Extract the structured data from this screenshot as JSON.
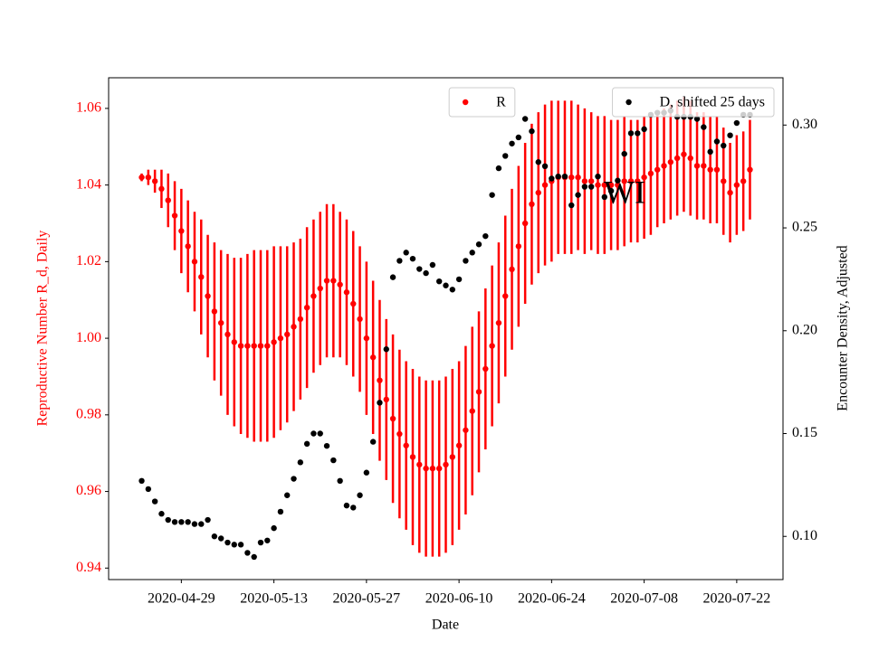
{
  "chart_data": {
    "type": "errorbar_dual",
    "annotation": "WI",
    "xlabel": "Date",
    "ylabel": "Reproductive Number R_d, Daily",
    "y2label": "Encounter Density, Adjusted",
    "x": [
      "2020-04-23",
      "2020-04-24",
      "2020-04-25",
      "2020-04-26",
      "2020-04-27",
      "2020-04-28",
      "2020-04-29",
      "2020-04-30",
      "2020-05-01",
      "2020-05-02",
      "2020-05-03",
      "2020-05-04",
      "2020-05-05",
      "2020-05-06",
      "2020-05-07",
      "2020-05-08",
      "2020-05-09",
      "2020-05-10",
      "2020-05-11",
      "2020-05-12",
      "2020-05-13",
      "2020-05-14",
      "2020-05-15",
      "2020-05-16",
      "2020-05-17",
      "2020-05-18",
      "2020-05-19",
      "2020-05-20",
      "2020-05-21",
      "2020-05-22",
      "2020-05-23",
      "2020-05-24",
      "2020-05-25",
      "2020-05-26",
      "2020-05-27",
      "2020-05-28",
      "2020-05-29",
      "2020-05-30",
      "2020-05-31",
      "2020-06-01",
      "2020-06-02",
      "2020-06-03",
      "2020-06-04",
      "2020-06-05",
      "2020-06-06",
      "2020-06-07",
      "2020-06-08",
      "2020-06-09",
      "2020-06-10",
      "2020-06-11",
      "2020-06-12",
      "2020-06-13",
      "2020-06-14",
      "2020-06-15",
      "2020-06-16",
      "2020-06-17",
      "2020-06-18",
      "2020-06-19",
      "2020-06-20",
      "2020-06-21",
      "2020-06-22",
      "2020-06-23",
      "2020-06-24",
      "2020-06-25",
      "2020-06-26",
      "2020-06-27",
      "2020-06-28",
      "2020-06-29",
      "2020-06-30",
      "2020-07-01",
      "2020-07-02",
      "2020-07-03",
      "2020-07-04",
      "2020-07-05",
      "2020-07-06",
      "2020-07-07",
      "2020-07-08",
      "2020-07-09",
      "2020-07-10",
      "2020-07-11",
      "2020-07-12",
      "2020-07-13",
      "2020-07-14",
      "2020-07-15",
      "2020-07-16",
      "2020-07-17",
      "2020-07-18",
      "2020-07-19",
      "2020-07-20",
      "2020-07-21",
      "2020-07-22",
      "2020-07-23",
      "2020-07-24"
    ],
    "series": [
      {
        "name": "R",
        "color": "#ff0000",
        "axis": "y",
        "legend": "upper center",
        "values": [
          1.042,
          1.042,
          1.041,
          1.039,
          1.036,
          1.032,
          1.028,
          1.024,
          1.02,
          1.016,
          1.011,
          1.007,
          1.004,
          1.001,
          0.999,
          0.998,
          0.998,
          0.998,
          0.998,
          0.998,
          0.999,
          1.0,
          1.001,
          1.003,
          1.005,
          1.008,
          1.011,
          1.013,
          1.015,
          1.015,
          1.014,
          1.012,
          1.009,
          1.005,
          1.0,
          0.995,
          0.989,
          0.984,
          0.979,
          0.975,
          0.972,
          0.969,
          0.967,
          0.966,
          0.966,
          0.966,
          0.967,
          0.969,
          0.972,
          0.976,
          0.981,
          0.986,
          0.992,
          0.998,
          1.004,
          1.011,
          1.018,
          1.024,
          1.03,
          1.035,
          1.038,
          1.04,
          1.041,
          1.042,
          1.042,
          1.042,
          1.042,
          1.041,
          1.041,
          1.04,
          1.04,
          1.04,
          1.04,
          1.041,
          1.041,
          1.041,
          1.042,
          1.043,
          1.044,
          1.045,
          1.046,
          1.047,
          1.048,
          1.047,
          1.045,
          1.045,
          1.044,
          1.044,
          1.041,
          1.038,
          1.04,
          1.041,
          1.044
        ],
        "errors": [
          0.001,
          0.002,
          0.003,
          0.005,
          0.007,
          0.009,
          0.011,
          0.012,
          0.013,
          0.015,
          0.016,
          0.018,
          0.019,
          0.021,
          0.022,
          0.023,
          0.024,
          0.025,
          0.025,
          0.025,
          0.025,
          0.024,
          0.023,
          0.022,
          0.021,
          0.021,
          0.02,
          0.02,
          0.02,
          0.02,
          0.019,
          0.019,
          0.019,
          0.019,
          0.02,
          0.02,
          0.021,
          0.021,
          0.022,
          0.022,
          0.022,
          0.023,
          0.023,
          0.023,
          0.023,
          0.023,
          0.023,
          0.023,
          0.022,
          0.022,
          0.022,
          0.021,
          0.021,
          0.021,
          0.021,
          0.021,
          0.021,
          0.021,
          0.021,
          0.021,
          0.021,
          0.021,
          0.021,
          0.02,
          0.02,
          0.02,
          0.019,
          0.019,
          0.018,
          0.018,
          0.018,
          0.017,
          0.017,
          0.017,
          0.016,
          0.016,
          0.016,
          0.016,
          0.015,
          0.015,
          0.015,
          0.015,
          0.015,
          0.015,
          0.014,
          0.014,
          0.014,
          0.014,
          0.014,
          0.013,
          0.013,
          0.013,
          0.013
        ]
      },
      {
        "name": "D, shifted 25 days",
        "color": "#000000",
        "axis": "y2",
        "legend": "upper right",
        "values": [
          0.127,
          0.123,
          0.117,
          0.111,
          0.108,
          0.107,
          0.107,
          0.107,
          0.106,
          0.106,
          0.108,
          0.1,
          0.099,
          0.097,
          0.096,
          0.096,
          0.092,
          0.09,
          0.097,
          0.098,
          0.104,
          0.112,
          0.12,
          0.128,
          0.136,
          0.145,
          0.15,
          0.15,
          0.144,
          0.137,
          0.127,
          0.115,
          0.114,
          0.12,
          0.131,
          0.146,
          0.165,
          0.191,
          0.226,
          0.234,
          0.238,
          0.235,
          0.23,
          0.228,
          0.232,
          0.224,
          0.222,
          0.22,
          0.225,
          0.234,
          0.238,
          0.242,
          0.246,
          0.266,
          0.279,
          0.285,
          0.291,
          0.294,
          0.303,
          0.297,
          0.282,
          0.28,
          0.274,
          0.275,
          0.275,
          0.261,
          0.266,
          0.27,
          0.27,
          0.275,
          0.265,
          0.268,
          0.273,
          0.286,
          0.296,
          0.296,
          0.298,
          0.305,
          0.306,
          0.306,
          0.307,
          0.304,
          0.304,
          0.304,
          0.303,
          0.299,
          0.287,
          0.292,
          0.29,
          0.295,
          0.301,
          0.305,
          0.305
        ]
      }
    ],
    "xlim": [
      "2020-04-18",
      "2020-07-29"
    ],
    "xticks": [
      "2020-04-29",
      "2020-05-13",
      "2020-05-27",
      "2020-06-10",
      "2020-06-24",
      "2020-07-08",
      "2020-07-22"
    ],
    "ylim": [
      0.937,
      1.068
    ],
    "yticks": [
      0.94,
      0.96,
      0.98,
      {
        "value": 1,
        "label": "1.00"
      },
      1.02,
      1.04,
      1.06
    ],
    "y2lim": [
      0.079,
      0.323
    ],
    "y2ticks": [
      {
        "value": 0.1,
        "label": "0.10"
      },
      0.15,
      {
        "value": 0.2,
        "label": "0.20"
      },
      0.25,
      {
        "value": 0.3,
        "label": "0.30"
      }
    ],
    "ytick_color": "#ff0000"
  }
}
